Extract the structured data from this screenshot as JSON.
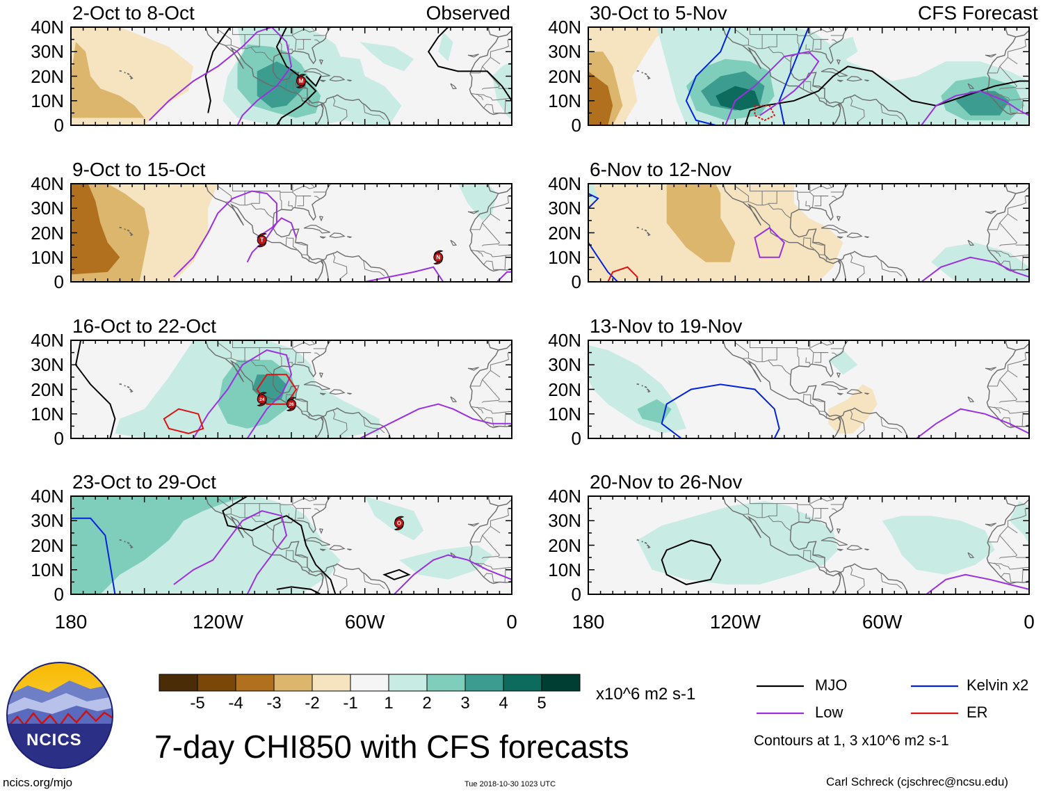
{
  "panels": [
    {
      "period": "2-Oct to 8-Oct",
      "corner": "Observed"
    },
    {
      "period": "9-Oct to 15-Oct",
      "corner": ""
    },
    {
      "period": "16-Oct to 22-Oct",
      "corner": ""
    },
    {
      "period": "23-Oct to 29-Oct",
      "corner": ""
    },
    {
      "period": "30-Oct to 5-Nov",
      "corner": "CFS Forecast"
    },
    {
      "period": "6-Nov to 12-Nov",
      "corner": ""
    },
    {
      "period": "13-Nov to 19-Nov",
      "corner": ""
    },
    {
      "period": "20-Nov to 26-Nov",
      "corner": ""
    }
  ],
  "lat_labels": [
    "40N",
    "30N",
    "20N",
    "10N",
    "0"
  ],
  "lon_labels": [
    "180",
    "120W",
    "60W",
    "0"
  ],
  "storm_markers": [
    "M",
    "T",
    "N",
    "24",
    "26",
    "O"
  ],
  "colorbar": {
    "ticks": [
      "-5",
      "-4",
      "-3",
      "-2",
      "-1",
      "1",
      "2",
      "3",
      "4",
      "5"
    ],
    "units": "x10^6 m2 s-1",
    "colors": [
      "#4a2d06",
      "#7a4708",
      "#b0701e",
      "#dcb66c",
      "#f5e4bf",
      "#f5f5f5",
      "#c8ebe3",
      "#7fcdbb",
      "#3b9c8f",
      "#0c6b5d",
      "#003d33"
    ]
  },
  "contour_legend": [
    {
      "label": "MJO",
      "color": "#000000"
    },
    {
      "label": "Kelvin x2",
      "color": "#0022dd"
    },
    {
      "label": "Low",
      "color": "#9b30e0"
    },
    {
      "label": "ER",
      "color": "#dd1111"
    }
  ],
  "contour_note": "Contours at 1, 3 x10^6 m2 s-1",
  "title": "7-day CHI850 with CFS forecasts",
  "logo_text": "NCICS",
  "footer": {
    "url": "ncics.org/mjo",
    "timestamp": "Tue 2018-10-30 1023 UTC",
    "author": "Carl Schreck (cjschrec@ncsu.edu)"
  }
}
